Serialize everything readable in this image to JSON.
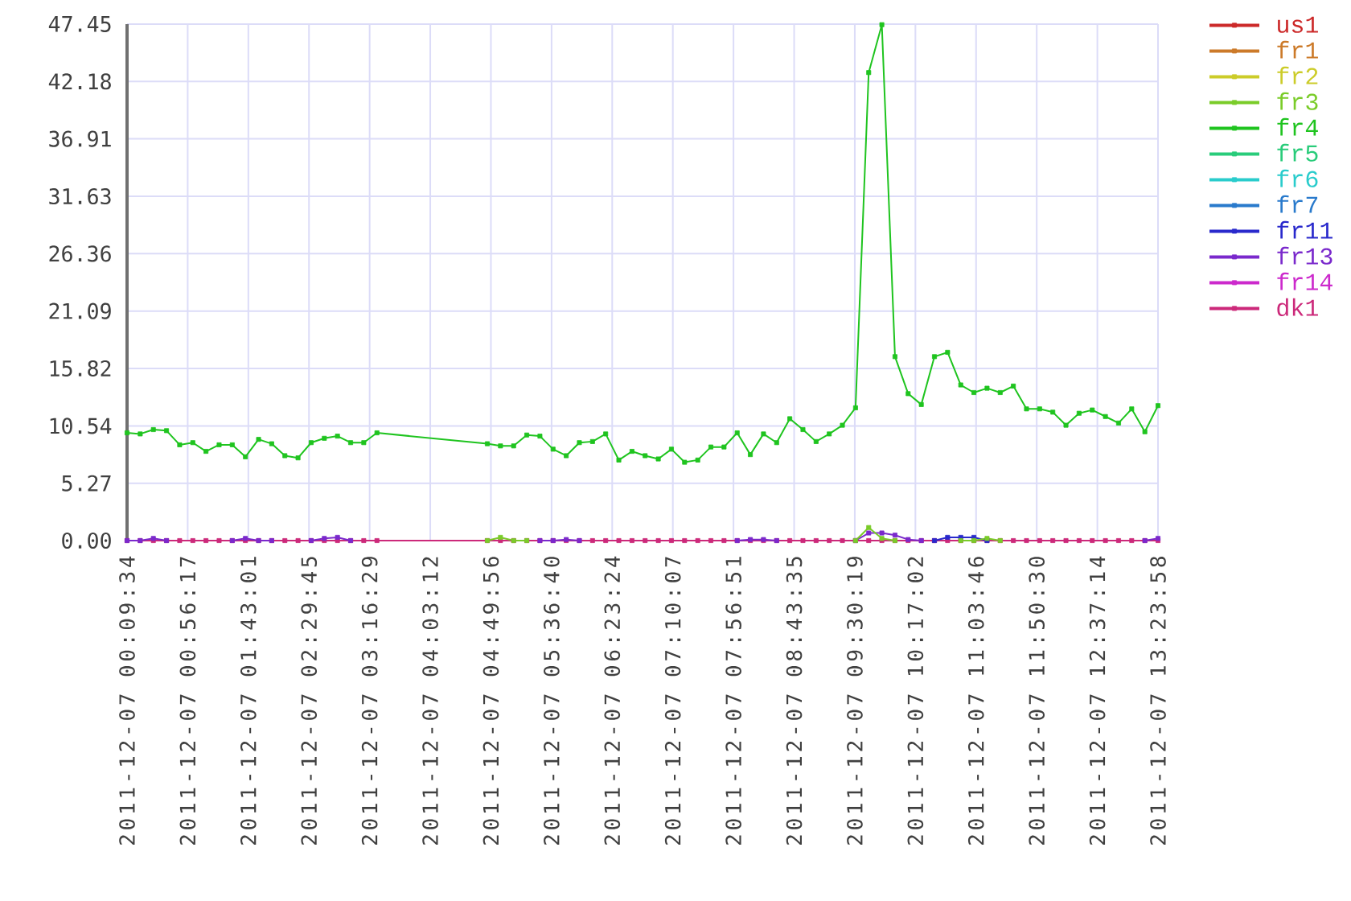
{
  "chart_data": {
    "type": "line",
    "x": [
      "2011-12-07T00:09:34",
      "2011-12-07T00:19:42",
      "2011-12-07T00:29:50",
      "2011-12-07T00:39:58",
      "2011-12-07T00:50:06",
      "2011-12-07T01:00:14",
      "2011-12-07T01:10:22",
      "2011-12-07T01:20:30",
      "2011-12-07T01:30:38",
      "2011-12-07T01:40:46",
      "2011-12-07T01:50:54",
      "2011-12-07T02:01:02",
      "2011-12-07T02:11:10",
      "2011-12-07T02:21:18",
      "2011-12-07T02:31:26",
      "2011-12-07T02:41:34",
      "2011-12-07T02:51:42",
      "2011-12-07T03:01:50",
      "2011-12-07T03:11:58",
      "2011-12-07T03:22:06",
      "2011-12-07T04:47:10",
      "2011-12-07T04:57:18",
      "2011-12-07T05:07:26",
      "2011-12-07T05:17:34",
      "2011-12-07T05:27:42",
      "2011-12-07T05:37:50",
      "2011-12-07T05:47:58",
      "2011-12-07T05:58:06",
      "2011-12-07T06:08:14",
      "2011-12-07T06:18:22",
      "2011-12-07T06:28:30",
      "2011-12-07T06:38:38",
      "2011-12-07T06:48:46",
      "2011-12-07T06:58:54",
      "2011-12-07T07:09:02",
      "2011-12-07T07:19:10",
      "2011-12-07T07:29:18",
      "2011-12-07T07:39:26",
      "2011-12-07T07:49:34",
      "2011-12-07T07:59:42",
      "2011-12-07T08:09:50",
      "2011-12-07T08:19:58",
      "2011-12-07T08:30:06",
      "2011-12-07T08:40:14",
      "2011-12-07T08:50:22",
      "2011-12-07T09:00:30",
      "2011-12-07T09:10:38",
      "2011-12-07T09:20:46",
      "2011-12-07T09:30:54",
      "2011-12-07T09:41:02",
      "2011-12-07T09:51:10",
      "2011-12-07T10:01:18",
      "2011-12-07T10:11:26",
      "2011-12-07T10:21:34",
      "2011-12-07T10:31:42",
      "2011-12-07T10:41:50",
      "2011-12-07T10:51:58",
      "2011-12-07T11:02:06",
      "2011-12-07T11:12:14",
      "2011-12-07T11:22:22",
      "2011-12-07T11:32:30",
      "2011-12-07T11:42:38",
      "2011-12-07T11:52:46",
      "2011-12-07T12:02:54",
      "2011-12-07T12:13:02",
      "2011-12-07T12:23:10",
      "2011-12-07T12:33:18",
      "2011-12-07T12:43:26",
      "2011-12-07T12:53:34",
      "2011-12-07T13:03:42",
      "2011-12-07T13:13:50",
      "2011-12-07T13:23:58"
    ],
    "series": [
      {
        "name": "us1",
        "color": "#cc2929",
        "values": [
          null,
          null,
          null,
          null,
          null,
          null,
          null,
          null,
          null,
          null,
          null,
          null,
          null,
          null,
          null,
          null,
          null,
          null,
          null,
          null,
          null,
          null,
          null,
          null,
          null,
          null,
          null,
          null,
          null,
          null,
          null,
          null,
          null,
          null,
          null,
          null,
          null,
          null,
          null,
          null,
          null,
          null,
          null,
          null,
          null,
          null,
          null,
          null,
          null,
          null,
          null,
          null,
          null,
          null,
          null,
          null,
          null,
          null,
          null,
          null,
          null,
          null,
          null,
          null,
          null,
          null,
          null,
          null,
          null,
          null,
          null,
          null
        ]
      },
      {
        "name": "fr1",
        "color": "#cc7a29",
        "values": [
          null,
          null,
          null,
          null,
          null,
          null,
          null,
          null,
          null,
          null,
          null,
          null,
          null,
          null,
          null,
          null,
          null,
          null,
          null,
          null,
          null,
          null,
          null,
          null,
          null,
          null,
          null,
          null,
          null,
          null,
          null,
          null,
          null,
          null,
          null,
          null,
          null,
          null,
          null,
          null,
          null,
          null,
          null,
          null,
          null,
          null,
          null,
          null,
          null,
          null,
          null,
          null,
          null,
          null,
          null,
          null,
          null,
          null,
          null,
          null,
          null,
          null,
          null,
          null,
          null,
          null,
          null,
          null,
          null,
          null,
          null,
          null
        ]
      },
      {
        "name": "fr2",
        "color": "#cccc29",
        "values": [
          null,
          null,
          null,
          null,
          null,
          null,
          null,
          null,
          null,
          null,
          null,
          null,
          null,
          null,
          null,
          null,
          null,
          null,
          null,
          null,
          null,
          null,
          null,
          null,
          null,
          null,
          null,
          null,
          null,
          null,
          null,
          null,
          null,
          null,
          null,
          null,
          null,
          null,
          null,
          null,
          null,
          null,
          null,
          null,
          null,
          null,
          null,
          null,
          null,
          null,
          null,
          null,
          null,
          null,
          null,
          null,
          null,
          null,
          null,
          null,
          null,
          null,
          null,
          null,
          null,
          null,
          null,
          null,
          null,
          null,
          null,
          null
        ]
      },
      {
        "name": "fr3",
        "color": "#7acc29",
        "values": [
          null,
          null,
          null,
          null,
          null,
          null,
          null,
          null,
          null,
          null,
          null,
          null,
          null,
          null,
          null,
          null,
          null,
          null,
          null,
          null,
          0,
          0.3,
          0,
          0,
          null,
          null,
          null,
          null,
          null,
          null,
          null,
          null,
          null,
          null,
          null,
          null,
          null,
          null,
          null,
          null,
          null,
          null,
          null,
          null,
          null,
          null,
          null,
          null,
          0,
          1.2,
          0.2,
          0,
          null,
          null,
          null,
          null,
          0,
          0,
          0.2,
          0,
          null,
          null,
          null,
          null,
          null,
          null,
          null,
          null,
          null,
          null,
          null,
          null
        ]
      },
      {
        "name": "fr4",
        "color": "#1fc41f",
        "values": [
          9.9,
          9.8,
          10.2,
          10.1,
          8.8,
          9.0,
          8.2,
          8.8,
          8.8,
          7.7,
          9.3,
          8.9,
          7.8,
          7.6,
          9.0,
          9.4,
          9.6,
          9.0,
          9.0,
          9.9,
          8.9,
          8.7,
          8.7,
          9.7,
          9.6,
          8.4,
          7.8,
          9.0,
          9.1,
          9.8,
          7.4,
          8.2,
          7.8,
          7.5,
          8.4,
          7.2,
          7.4,
          8.6,
          8.6,
          9.9,
          7.9,
          9.8,
          9.0,
          11.2,
          10.2,
          9.1,
          9.8,
          10.6,
          12.2,
          43.0,
          47.4,
          16.9,
          13.5,
          12.5,
          16.9,
          17.3,
          14.3,
          13.6,
          14.0,
          13.6,
          14.2,
          12.1,
          12.1,
          11.8,
          10.6,
          11.7,
          12.0,
          11.4,
          10.8,
          12.1,
          10.0,
          12.4
        ]
      },
      {
        "name": "fr5",
        "color": "#29cc7a",
        "values": [
          null,
          null,
          null,
          null,
          null,
          null,
          null,
          null,
          null,
          null,
          null,
          null,
          null,
          null,
          null,
          null,
          null,
          null,
          null,
          null,
          null,
          null,
          null,
          null,
          null,
          null,
          null,
          null,
          null,
          null,
          null,
          null,
          null,
          null,
          null,
          null,
          null,
          null,
          null,
          null,
          null,
          null,
          null,
          null,
          null,
          null,
          null,
          null,
          null,
          null,
          null,
          null,
          null,
          null,
          null,
          null,
          null,
          null,
          null,
          null,
          null,
          null,
          null,
          null,
          null,
          null,
          null,
          null,
          null,
          null,
          null,
          null
        ]
      },
      {
        "name": "fr6",
        "color": "#29cccc",
        "values": [
          null,
          null,
          null,
          null,
          null,
          null,
          null,
          null,
          null,
          null,
          null,
          null,
          null,
          null,
          null,
          null,
          null,
          null,
          null,
          null,
          null,
          null,
          null,
          null,
          null,
          null,
          null,
          null,
          null,
          null,
          null,
          null,
          null,
          null,
          null,
          null,
          null,
          null,
          null,
          null,
          null,
          null,
          null,
          null,
          null,
          null,
          null,
          null,
          null,
          null,
          null,
          null,
          null,
          null,
          null,
          null,
          null,
          null,
          null,
          null,
          null,
          null,
          null,
          null,
          null,
          null,
          null,
          null,
          null,
          null,
          null,
          null
        ]
      },
      {
        "name": "fr7",
        "color": "#297acc",
        "values": [
          null,
          null,
          null,
          null,
          null,
          null,
          null,
          null,
          null,
          null,
          null,
          null,
          null,
          null,
          null,
          null,
          null,
          null,
          null,
          null,
          null,
          null,
          null,
          null,
          null,
          null,
          null,
          null,
          null,
          null,
          null,
          null,
          null,
          null,
          null,
          null,
          null,
          null,
          null,
          null,
          null,
          null,
          null,
          null,
          null,
          null,
          null,
          null,
          null,
          null,
          null,
          null,
          null,
          null,
          null,
          null,
          null,
          null,
          null,
          null,
          null,
          null,
          null,
          null,
          null,
          null,
          null,
          null,
          null,
          null,
          null,
          null
        ]
      },
      {
        "name": "fr11",
        "color": "#2929cc",
        "values": [
          null,
          null,
          null,
          null,
          null,
          null,
          null,
          null,
          null,
          null,
          null,
          null,
          null,
          null,
          null,
          null,
          null,
          null,
          null,
          null,
          null,
          null,
          null,
          null,
          null,
          null,
          null,
          null,
          null,
          null,
          null,
          null,
          null,
          null,
          null,
          null,
          null,
          null,
          null,
          null,
          null,
          null,
          null,
          null,
          null,
          null,
          null,
          null,
          null,
          null,
          null,
          null,
          null,
          null,
          0,
          0.3,
          0.3,
          0.3,
          0,
          null,
          null,
          null,
          null,
          null,
          null,
          null,
          null,
          null,
          null,
          null,
          null,
          null
        ]
      },
      {
        "name": "fr13",
        "color": "#7a29cc",
        "values": [
          0,
          0,
          0.2,
          0,
          null,
          null,
          null,
          null,
          0,
          0.2,
          0,
          0,
          null,
          null,
          0,
          0.2,
          0.3,
          0,
          null,
          null,
          null,
          null,
          null,
          null,
          0,
          0,
          0.1,
          0,
          null,
          null,
          null,
          null,
          null,
          null,
          null,
          null,
          null,
          null,
          null,
          0,
          0.1,
          0.1,
          0,
          null,
          null,
          null,
          null,
          null,
          0,
          0.7,
          0.7,
          0.5,
          0.1,
          0,
          null,
          null,
          null,
          null,
          null,
          null,
          null,
          null,
          null,
          null,
          null,
          null,
          null,
          null,
          null,
          null,
          0,
          0.2
        ]
      },
      {
        "name": "fr14",
        "color": "#cc29cc",
        "values": [
          null,
          null,
          null,
          null,
          null,
          null,
          null,
          null,
          null,
          null,
          null,
          null,
          null,
          null,
          null,
          null,
          null,
          null,
          null,
          null,
          null,
          null,
          null,
          null,
          null,
          null,
          null,
          null,
          null,
          null,
          null,
          null,
          null,
          null,
          null,
          null,
          null,
          null,
          null,
          null,
          null,
          null,
          null,
          null,
          null,
          null,
          null,
          null,
          null,
          null,
          null,
          null,
          null,
          null,
          null,
          null,
          null,
          null,
          null,
          null,
          null,
          null,
          null,
          null,
          null,
          null,
          null,
          null,
          null,
          null,
          null,
          null
        ]
      },
      {
        "name": "dk1",
        "color": "#cc297a",
        "values": [
          0,
          0,
          0,
          0,
          0,
          0,
          0,
          0,
          0,
          0,
          0,
          0,
          0,
          0,
          0,
          0,
          0,
          0,
          0,
          0,
          0,
          0,
          0,
          0,
          0,
          0,
          0,
          0,
          0,
          0,
          0,
          0,
          0,
          0,
          0,
          0,
          0,
          0,
          0,
          0,
          0,
          0,
          0,
          0,
          0,
          0,
          0,
          0,
          0,
          0,
          0,
          0,
          0,
          0,
          0,
          0,
          0,
          0,
          0,
          0,
          0,
          0,
          0,
          0,
          0,
          0,
          0,
          0,
          0,
          0,
          0,
          0
        ]
      }
    ],
    "xlim": [
      "2011-12-07T00:09:34",
      "2011-12-07T13:23:58"
    ],
    "xticks": [
      {
        "value": "2011-12-07T00:09:34",
        "label": "2011-12-07 00:09:34"
      },
      {
        "value": "2011-12-07T00:56:17",
        "label": "2011-12-07 00:56:17"
      },
      {
        "value": "2011-12-07T01:43:01",
        "label": "2011-12-07 01:43:01"
      },
      {
        "value": "2011-12-07T02:29:45",
        "label": "2011-12-07 02:29:45"
      },
      {
        "value": "2011-12-07T03:16:29",
        "label": "2011-12-07 03:16:29"
      },
      {
        "value": "2011-12-07T04:03:12",
        "label": "2011-12-07 04:03:12"
      },
      {
        "value": "2011-12-07T04:49:56",
        "label": "2011-12-07 04:49:56"
      },
      {
        "value": "2011-12-07T05:36:40",
        "label": "2011-12-07 05:36:40"
      },
      {
        "value": "2011-12-07T06:23:24",
        "label": "2011-12-07 06:23:24"
      },
      {
        "value": "2011-12-07T07:10:07",
        "label": "2011-12-07 07:10:07"
      },
      {
        "value": "2011-12-07T07:56:51",
        "label": "2011-12-07 07:56:51"
      },
      {
        "value": "2011-12-07T08:43:35",
        "label": "2011-12-07 08:43:35"
      },
      {
        "value": "2011-12-07T09:30:19",
        "label": "2011-12-07 09:30:19"
      },
      {
        "value": "2011-12-07T10:17:02",
        "label": "2011-12-07 10:17:02"
      },
      {
        "value": "2011-12-07T11:03:46",
        "label": "2011-12-07 11:03:46"
      },
      {
        "value": "2011-12-07T11:50:30",
        "label": "2011-12-07 11:50:30"
      },
      {
        "value": "2011-12-07T12:37:14",
        "label": "2011-12-07 12:37:14"
      },
      {
        "value": "2011-12-07T13:23:58",
        "label": "2011-12-07 13:23:58"
      }
    ],
    "ylim": [
      0,
      47.45
    ],
    "yticks": [
      {
        "value": 0,
        "label": "0.00"
      },
      5.27,
      10.54,
      15.82,
      21.09,
      26.36,
      31.63,
      36.91,
      42.18,
      47.45
    ],
    "grid": true,
    "legend": "right",
    "marker": "square"
  }
}
